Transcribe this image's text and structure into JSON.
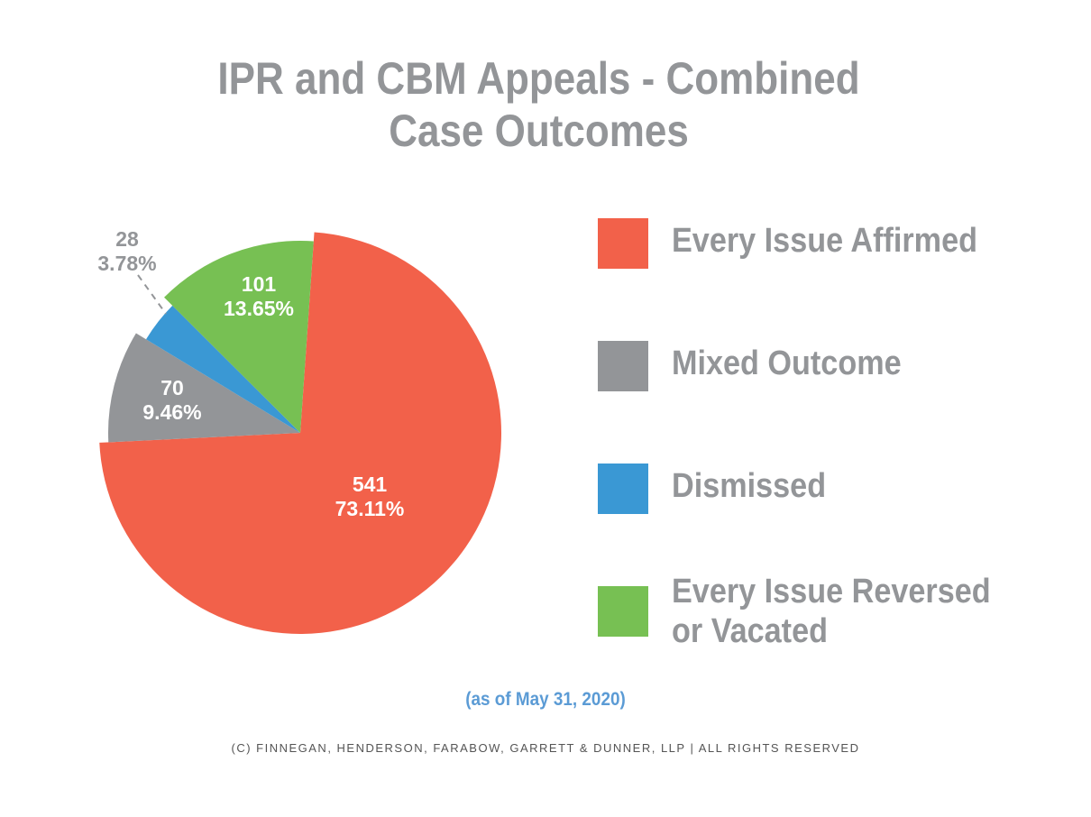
{
  "chart_data": {
    "type": "pie",
    "title": "IPR and CBM Appeals - Combined Case Outcomes",
    "title_lines": [
      "IPR and CBM Appeals - Combined",
      "Case Outcomes"
    ],
    "slices": [
      {
        "name": "Every Issue Affirmed",
        "value": 541,
        "percent": 73.11,
        "count_label": "541",
        "percent_label": "73.11%",
        "color": "#F2614A"
      },
      {
        "name": "Mixed Outcome",
        "value": 70,
        "percent": 9.46,
        "count_label": "70",
        "percent_label": "9.46%",
        "color": "#939598"
      },
      {
        "name": "Dismissed",
        "value": 28,
        "percent": 3.78,
        "count_label": "28",
        "percent_label": "3.78%",
        "color": "#3A98D4"
      },
      {
        "name": "Every Issue Reversed or Vacated",
        "value": 101,
        "percent": 13.65,
        "count_label": "101",
        "percent_label": "13.65%",
        "color": "#77C053"
      }
    ],
    "legend_lines": [
      [
        "Every Issue Affirmed"
      ],
      [
        "Mixed Outcome"
      ],
      [
        "Dismissed"
      ],
      [
        "Every Issue Reversed",
        "or Vacated"
      ]
    ],
    "legend_placement": "right",
    "note": "(as of May 31, 2020)"
  },
  "footer": "(C) FINNEGAN, HENDERSON, FARABOW, GARRETT & DUNNER, LLP | ALL RIGHTS RESERVED"
}
